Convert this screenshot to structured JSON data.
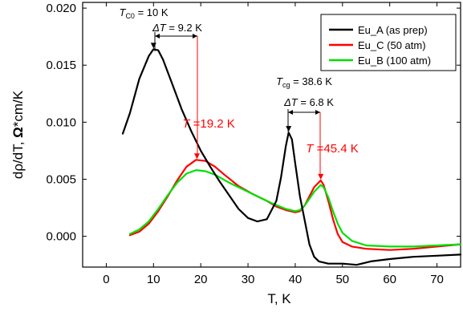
{
  "chart_data": {
    "type": "line",
    "xlabel": "T, K",
    "ylabel_prefix": "dρ/dT,  ",
    "ylabel_symbol": "Ω",
    "ylabel_suffix": "*cm/K",
    "xlim": [
      -5,
      75
    ],
    "ylim": [
      -0.0027,
      0.0205
    ],
    "xticks": [
      0,
      10,
      20,
      30,
      40,
      50,
      60,
      70
    ],
    "xtick_labels": [
      "0",
      "10",
      "20",
      "30",
      "40",
      "50",
      "60",
      "70"
    ],
    "yticks": [
      0.0,
      0.005,
      0.01,
      0.015,
      0.02
    ],
    "ytick_labels": [
      "0.000",
      "0.005",
      "0.010",
      "0.015",
      "0.020"
    ],
    "grid": false,
    "legend_position": "top-right",
    "series": [
      {
        "name": "Eu_A (as prep)",
        "color": "#000000",
        "points": [
          [
            3.5,
            0.009
          ],
          [
            5,
            0.0108
          ],
          [
            7,
            0.0138
          ],
          [
            9,
            0.0158
          ],
          [
            10,
            0.0164
          ],
          [
            11,
            0.0163
          ],
          [
            12,
            0.0155
          ],
          [
            14,
            0.0133
          ],
          [
            16,
            0.0111
          ],
          [
            18,
            0.0092
          ],
          [
            20,
            0.0075
          ],
          [
            22,
            0.0061
          ],
          [
            24,
            0.0048
          ],
          [
            26,
            0.0036
          ],
          [
            28,
            0.0024
          ],
          [
            30,
            0.0016
          ],
          [
            32,
            0.0013
          ],
          [
            34,
            0.0015
          ],
          [
            36,
            0.0031
          ],
          [
            37,
            0.0052
          ],
          [
            38,
            0.0079
          ],
          [
            38.6,
            0.0091
          ],
          [
            39.3,
            0.0085
          ],
          [
            40,
            0.0064
          ],
          [
            41,
            0.0035
          ],
          [
            42,
            0.0014
          ],
          [
            43,
            -0.0007
          ],
          [
            44,
            -0.0018
          ],
          [
            45,
            -0.0022
          ],
          [
            47,
            -0.0024
          ],
          [
            50,
            -0.0024
          ],
          [
            53,
            -0.0025
          ],
          [
            56,
            -0.0022
          ],
          [
            60,
            -0.002
          ],
          [
            65,
            -0.0018
          ],
          [
            70,
            -0.0017
          ],
          [
            75,
            -0.0016
          ]
        ]
      },
      {
        "name": "Eu_C (50 atm)",
        "color": "#ff0000",
        "points": [
          [
            5,
            0.0001
          ],
          [
            7,
            0.0004
          ],
          [
            9,
            0.0011
          ],
          [
            11,
            0.0022
          ],
          [
            13,
            0.0035
          ],
          [
            15,
            0.0049
          ],
          [
            17,
            0.0061
          ],
          [
            19,
            0.0067
          ],
          [
            21,
            0.0066
          ],
          [
            23,
            0.0061
          ],
          [
            25,
            0.0054
          ],
          [
            28,
            0.0044
          ],
          [
            31,
            0.0037
          ],
          [
            34,
            0.0031
          ],
          [
            36,
            0.0026
          ],
          [
            38,
            0.0023
          ],
          [
            40,
            0.0021
          ],
          [
            41,
            0.0022
          ],
          [
            42,
            0.0027
          ],
          [
            43,
            0.0035
          ],
          [
            44,
            0.0043
          ],
          [
            45.4,
            0.0049
          ],
          [
            46,
            0.0045
          ],
          [
            47,
            0.0031
          ],
          [
            48,
            0.0015
          ],
          [
            49,
            0.0002
          ],
          [
            50,
            -0.0005
          ],
          [
            52,
            -0.0009
          ],
          [
            55,
            -0.0011
          ],
          [
            60,
            -0.0012
          ],
          [
            65,
            -0.0011
          ],
          [
            70,
            -0.0009
          ],
          [
            75,
            -0.0007
          ]
        ]
      },
      {
        "name": "Eu_B (100 atm)",
        "color": "#00e000",
        "points": [
          [
            5,
            0.0002
          ],
          [
            7,
            0.0006
          ],
          [
            9,
            0.0013
          ],
          [
            11,
            0.0024
          ],
          [
            13,
            0.0036
          ],
          [
            15,
            0.0047
          ],
          [
            17,
            0.0055
          ],
          [
            19,
            0.0058
          ],
          [
            21,
            0.0057
          ],
          [
            23,
            0.0054
          ],
          [
            26,
            0.0047
          ],
          [
            29,
            0.0041
          ],
          [
            32,
            0.0035
          ],
          [
            35,
            0.0029
          ],
          [
            38,
            0.0024
          ],
          [
            40,
            0.0022
          ],
          [
            41,
            0.0023
          ],
          [
            42,
            0.0027
          ],
          [
            43,
            0.0033
          ],
          [
            44,
            0.0039
          ],
          [
            45.4,
            0.0045
          ],
          [
            46,
            0.0043
          ],
          [
            47,
            0.0034
          ],
          [
            48,
            0.0022
          ],
          [
            49,
            0.0011
          ],
          [
            50,
            0.0003
          ],
          [
            52,
            -0.0004
          ],
          [
            55,
            -0.0008
          ],
          [
            60,
            -0.0009
          ],
          [
            65,
            -0.0009
          ],
          [
            70,
            -0.0008
          ],
          [
            75,
            -0.0007
          ]
        ]
      }
    ],
    "annotations": [
      {
        "kind": "peak-marker",
        "color": "#000000",
        "x": 10,
        "y": 0.0164
      },
      {
        "kind": "peak-marker",
        "color": "#ff0000",
        "x": 19.2,
        "y": 0.0067
      },
      {
        "kind": "peak-marker",
        "color": "#000000",
        "x": 38.6,
        "y": 0.0091
      },
      {
        "kind": "peak-marker",
        "color": "#ff0000",
        "x": 45.4,
        "y": 0.0049
      }
    ],
    "labels": {
      "tc0_sym": "T",
      "tc0_sub": "C0",
      "tc0_val": " = 10 K",
      "dt1_sym": "ΔT",
      "dt1_val": " = 9.2 K",
      "t1_sym": "T",
      "t1_val": " =19.2 K",
      "tcg_sym": "T",
      "tcg_sub": "cg",
      "tcg_val": " = 38.6 K",
      "dt2_sym": "ΔT",
      "dt2_val": " = 6.8 K",
      "t2_sym": "T",
      "t2_val": " =45.4 K"
    }
  }
}
